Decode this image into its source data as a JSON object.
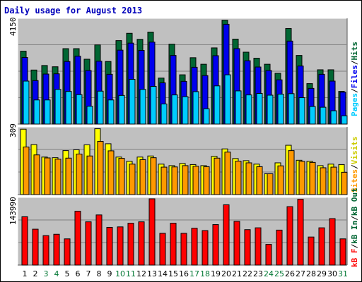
{
  "title": "Daily usage for August 2013",
  "colors": {
    "hits": "#006633",
    "files": "#0000ee",
    "pages": "#00ccff",
    "visits": "#ffff00",
    "sites": "#ff9900",
    "kbin": "#006633",
    "kbout": "#006633",
    "kbf": "#ff0000",
    "weekday_label": "#000000",
    "weekend_label": "#007733",
    "panel_bg": "#c0c0c0"
  },
  "legend_top": {
    "pages": "Pages",
    "sep1": "/",
    "files": "Files",
    "sep2": "/",
    "hits": "Hits"
  },
  "legend_mid": {
    "sites": "Sites",
    "sep1": "/",
    "visits": "Visits"
  },
  "legend_bot": {
    "kbf": "kB F",
    "sep1": "/",
    "kbin": "kB In",
    "sep2": "/",
    "kbout": "kB Out"
  },
  "chart_data": [
    {
      "type": "bar",
      "title": "Daily usage for August 2013",
      "y_max_label": "4150",
      "ylim": [
        0,
        4150
      ],
      "categories": [
        "1",
        "2",
        "3",
        "4",
        "5",
        "6",
        "7",
        "8",
        "9",
        "10",
        "11",
        "12",
        "13",
        "14",
        "15",
        "16",
        "17",
        "18",
        "19",
        "20",
        "21",
        "22",
        "23",
        "24",
        "25",
        "26",
        "27",
        "28",
        "29",
        "30",
        "31"
      ],
      "weekend_days": [
        "3",
        "4",
        "10",
        "11",
        "17",
        "18",
        "24",
        "25",
        "31"
      ],
      "series": [
        {
          "name": "Hits",
          "values": [
            2900,
            2150,
            2330,
            2280,
            3000,
            3000,
            2580,
            3150,
            2490,
            3320,
            3610,
            3370,
            3660,
            1830,
            3180,
            1960,
            2640,
            2380,
            3030,
            4130,
            3380,
            2860,
            2620,
            2380,
            2020,
            3800,
            2730,
            1610,
            2160,
            2160,
            1300
          ]
        },
        {
          "name": "Files",
          "values": [
            2650,
            1730,
            1990,
            2000,
            2490,
            2700,
            2130,
            2500,
            1980,
            2940,
            3220,
            2930,
            3260,
            1640,
            2730,
            1700,
            2260,
            1930,
            2720,
            3970,
            3000,
            2520,
            2270,
            2130,
            1760,
            3300,
            2310,
            1420,
            1980,
            1710,
            1270
          ]
        },
        {
          "name": "Pages",
          "values": [
            1710,
            960,
            960,
            1380,
            1300,
            1170,
            710,
            1310,
            960,
            1140,
            1780,
            1380,
            1500,
            800,
            1160,
            1090,
            1290,
            610,
            1520,
            1960,
            1320,
            1160,
            1220,
            1150,
            1190,
            1210,
            1050,
            700,
            670,
            530,
            330
          ]
        }
      ],
      "grid": true
    },
    {
      "type": "bar",
      "y_max_label": "309",
      "ylim": [
        0,
        309
      ],
      "categories": [
        "1",
        "2",
        "3",
        "4",
        "5",
        "6",
        "7",
        "8",
        "9",
        "10",
        "11",
        "12",
        "13",
        "14",
        "15",
        "16",
        "17",
        "18",
        "19",
        "20",
        "21",
        "22",
        "23",
        "24",
        "25",
        "26",
        "27",
        "28",
        "29",
        "30",
        "31"
      ],
      "series": [
        {
          "name": "Visits",
          "values": [
            305,
            233,
            175,
            172,
            205,
            209,
            232,
            307,
            237,
            175,
            155,
            175,
            180,
            142,
            135,
            145,
            140,
            135,
            178,
            213,
            168,
            158,
            142,
            97,
            148,
            230,
            160,
            155,
            135,
            142,
            140
          ]
        },
        {
          "name": "Sites",
          "values": [
            222,
            185,
            171,
            165,
            170,
            189,
            180,
            248,
            204,
            169,
            142,
            163,
            172,
            128,
            129,
            135,
            132,
            130,
            170,
            198,
            156,
            148,
            130,
            97,
            134,
            205,
            155,
            150,
            125,
            128,
            104
          ]
        }
      ],
      "grid": true
    },
    {
      "type": "bar",
      "y_max_label": "143990",
      "ylim": [
        0,
        143990
      ],
      "categories": [
        "1",
        "2",
        "3",
        "4",
        "5",
        "6",
        "7",
        "8",
        "9",
        "10",
        "11",
        "12",
        "13",
        "14",
        "15",
        "16",
        "17",
        "18",
        "19",
        "20",
        "21",
        "22",
        "23",
        "24",
        "25",
        "26",
        "27",
        "28",
        "29",
        "30",
        "31"
      ],
      "series": [
        {
          "name": "kB F",
          "values": [
            105000,
            78000,
            64000,
            67000,
            57000,
            117000,
            94000,
            109000,
            82000,
            83000,
            91000,
            94000,
            143990,
            69000,
            91000,
            69000,
            80000,
            75000,
            88000,
            131000,
            95000,
            77000,
            81000,
            45000,
            76000,
            127000,
            143000,
            61000,
            81000,
            101000,
            57000
          ]
        }
      ],
      "grid": true
    }
  ]
}
